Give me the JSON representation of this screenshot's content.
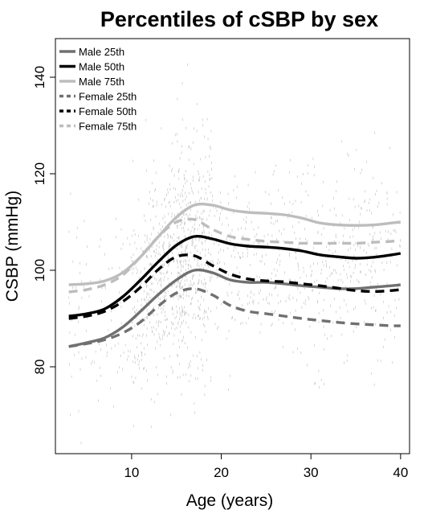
{
  "chart_data": {
    "type": "line",
    "title": "Percentiles of cSBP by sex",
    "xlabel": "Age (years)",
    "ylabel": "CSBP (mmHg)",
    "xlim": [
      1.5,
      41
    ],
    "ylim": [
      62,
      148
    ],
    "x_ticks": [
      10,
      20,
      30,
      40
    ],
    "y_ticks": [
      80,
      100,
      120,
      140
    ],
    "grid": false,
    "legend_position": "top-left",
    "x": [
      3,
      5,
      7,
      9,
      11,
      13,
      15,
      17,
      19,
      21,
      23,
      25,
      27,
      29,
      31,
      33,
      35,
      37,
      39,
      40
    ],
    "series": [
      {
        "name": "Male 25th",
        "color": "#707070",
        "dash": "solid",
        "values": [
          84.2,
          85.0,
          86.0,
          88.2,
          91.5,
          95.0,
          98.0,
          100.0,
          99.5,
          98.0,
          97.5,
          97.5,
          97.2,
          96.8,
          96.5,
          96.2,
          96.2,
          96.5,
          96.8,
          97.0
        ]
      },
      {
        "name": "Male 50th",
        "color": "#000000",
        "dash": "solid",
        "values": [
          90.5,
          91.0,
          92.0,
          94.5,
          98.0,
          101.8,
          105.2,
          107.0,
          106.5,
          105.5,
          105.0,
          104.8,
          104.5,
          104.0,
          103.2,
          102.8,
          102.5,
          102.7,
          103.2,
          103.5
        ]
      },
      {
        "name": "Male 75th",
        "color": "#bdbdbd",
        "dash": "solid",
        "values": [
          97.0,
          97.2,
          97.8,
          99.5,
          102.8,
          107.0,
          111.0,
          113.5,
          113.5,
          112.5,
          112.0,
          111.8,
          111.5,
          110.8,
          109.8,
          109.4,
          109.3,
          109.4,
          109.8,
          110.0
        ]
      },
      {
        "name": "Female 25th",
        "color": "#707070",
        "dash": "dashed",
        "values": [
          84.2,
          84.8,
          85.6,
          87.0,
          89.3,
          92.6,
          95.3,
          96.2,
          94.9,
          92.7,
          91.5,
          91.0,
          90.5,
          90.0,
          89.6,
          89.2,
          88.9,
          88.7,
          88.5,
          88.5
        ]
      },
      {
        "name": "Female 50th",
        "color": "#000000",
        "dash": "dashed",
        "values": [
          90.0,
          90.5,
          91.5,
          93.5,
          96.5,
          100.2,
          102.8,
          103.0,
          101.0,
          99.2,
          98.2,
          97.8,
          97.6,
          97.2,
          96.8,
          96.3,
          95.8,
          95.6,
          95.8,
          96.0
        ]
      },
      {
        "name": "Female 75th",
        "color": "#bdbdbd",
        "dash": "dashed",
        "values": [
          95.5,
          96.0,
          97.0,
          99.0,
          102.8,
          107.0,
          110.0,
          110.5,
          108.5,
          107.0,
          106.4,
          106.0,
          105.8,
          105.6,
          105.6,
          105.6,
          105.6,
          105.8,
          106.0,
          106.2
        ]
      }
    ]
  }
}
